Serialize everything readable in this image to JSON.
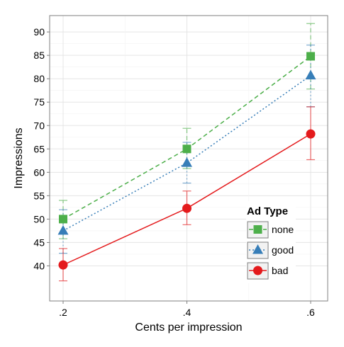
{
  "chart_data": {
    "type": "line",
    "x": [
      0.2,
      0.4,
      0.6
    ],
    "x_tick_labels": [
      ".2",
      ".4",
      ".6"
    ],
    "xlabel": "Cents per impression",
    "ylabel": "Impressions",
    "ylim": [
      32.5,
      93.5
    ],
    "y_ticks": [
      40,
      45,
      50,
      55,
      60,
      65,
      70,
      75,
      80,
      85,
      90
    ],
    "grid": true,
    "legend": {
      "title": "Ad Type",
      "placement": "bottom-right"
    },
    "series": [
      {
        "name": "none",
        "color": "#4DAF4A",
        "marker": "square",
        "line_style": "dashed",
        "values": [
          50.0,
          65.0,
          84.8
        ],
        "error_low": [
          45.8,
          60.8,
          77.8
        ],
        "error_high": [
          54.0,
          69.4,
          91.8
        ]
      },
      {
        "name": "good",
        "color": "#377EB8",
        "marker": "triangle",
        "line_style": "dotted",
        "values": [
          47.5,
          62.0,
          80.7
        ],
        "error_low": [
          42.7,
          57.7,
          74.0
        ],
        "error_high": [
          52.0,
          66.4,
          87.2
        ]
      },
      {
        "name": "bad",
        "color": "#E41A1C",
        "marker": "circle",
        "line_style": "solid",
        "values": [
          40.2,
          52.3,
          68.2
        ],
        "error_low": [
          36.8,
          48.8,
          62.7
        ],
        "error_high": [
          43.7,
          56.0,
          74.0
        ]
      }
    ]
  }
}
